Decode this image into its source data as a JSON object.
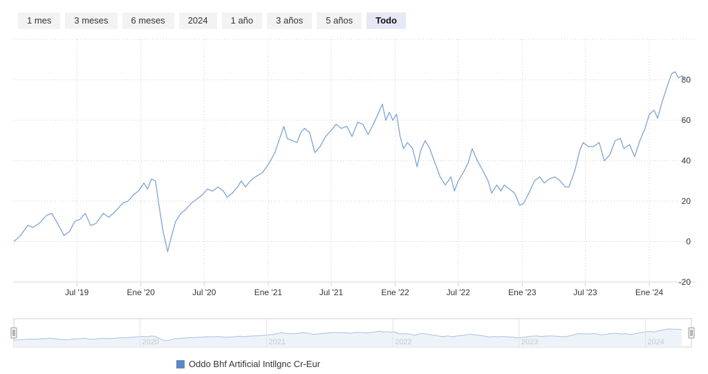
{
  "range_selector": {
    "buttons": [
      "1 mes",
      "3 meses",
      "6 meses",
      "2024",
      "1 año",
      "3 años",
      "5 años",
      "Todo"
    ],
    "selected": "Todo"
  },
  "colors": {
    "series": "#7ca2d3",
    "legend_swatch": "#5b87c4",
    "grid": "#c9c9c9",
    "navigator_line": "#a8c0e0",
    "navigator_fill": "#eef3fa",
    "axis_line": "#ccd6eb"
  },
  "chart_data": {
    "type": "line",
    "title": "",
    "xlabel": "",
    "ylabel": "",
    "x_tick_labels": [
      "Jul '19",
      "Ene '20",
      "Jul '20",
      "Ene '21",
      "Jul '21",
      "Ene '22",
      "Jul '22",
      "Ene '23",
      "Jul '23",
      "Ene '24"
    ],
    "y_tick_labels": [
      "-20",
      "0",
      "20",
      "40",
      "60",
      "80"
    ],
    "ylim": [
      -20,
      100
    ],
    "grid": true,
    "y_axis_side": "right",
    "legend_position": "bottom",
    "series": [
      {
        "name": "Oddo Bhf Artificial Intllgnc Cr-Eur",
        "points": [
          [
            "2019-01-01",
            0
          ],
          [
            "2019-01-20",
            3
          ],
          [
            "2019-02-10",
            8
          ],
          [
            "2019-02-25",
            7
          ],
          [
            "2019-03-15",
            9
          ],
          [
            "2019-04-05",
            13
          ],
          [
            "2019-04-20",
            14
          ],
          [
            "2019-05-10",
            8
          ],
          [
            "2019-05-25",
            3
          ],
          [
            "2019-06-10",
            5
          ],
          [
            "2019-06-25",
            10
          ],
          [
            "2019-07-10",
            11
          ],
          [
            "2019-07-25",
            14
          ],
          [
            "2019-08-10",
            8
          ],
          [
            "2019-08-25",
            9
          ],
          [
            "2019-09-15",
            14
          ],
          [
            "2019-10-01",
            12
          ],
          [
            "2019-10-20",
            15
          ],
          [
            "2019-11-10",
            19
          ],
          [
            "2019-11-25",
            20
          ],
          [
            "2019-12-10",
            23
          ],
          [
            "2019-12-25",
            25
          ],
          [
            "2020-01-10",
            29
          ],
          [
            "2020-01-20",
            26
          ],
          [
            "2020-02-01",
            31
          ],
          [
            "2020-02-12",
            30
          ],
          [
            "2020-02-22",
            18
          ],
          [
            "2020-03-05",
            5
          ],
          [
            "2020-03-18",
            -5
          ],
          [
            "2020-03-28",
            2
          ],
          [
            "2020-04-10",
            10
          ],
          [
            "2020-04-25",
            14
          ],
          [
            "2020-05-10",
            16
          ],
          [
            "2020-05-25",
            19
          ],
          [
            "2020-06-10",
            21
          ],
          [
            "2020-06-25",
            23
          ],
          [
            "2020-07-10",
            26
          ],
          [
            "2020-07-25",
            25
          ],
          [
            "2020-08-10",
            27
          ],
          [
            "2020-08-25",
            25
          ],
          [
            "2020-09-05",
            22
          ],
          [
            "2020-09-20",
            24
          ],
          [
            "2020-10-05",
            27
          ],
          [
            "2020-10-15",
            30
          ],
          [
            "2020-10-28",
            27
          ],
          [
            "2020-11-10",
            30
          ],
          [
            "2020-11-25",
            32
          ],
          [
            "2020-12-15",
            34
          ],
          [
            "2021-01-01",
            38
          ],
          [
            "2021-01-20",
            44
          ],
          [
            "2021-02-05",
            52
          ],
          [
            "2021-02-15",
            57
          ],
          [
            "2021-02-25",
            51
          ],
          [
            "2021-03-10",
            50
          ],
          [
            "2021-03-25",
            49
          ],
          [
            "2021-04-05",
            54
          ],
          [
            "2021-04-15",
            56
          ],
          [
            "2021-04-30",
            54
          ],
          [
            "2021-05-15",
            44
          ],
          [
            "2021-05-30",
            47
          ],
          [
            "2021-06-15",
            52
          ],
          [
            "2021-07-01",
            55
          ],
          [
            "2021-07-15",
            58
          ],
          [
            "2021-07-30",
            56
          ],
          [
            "2021-08-15",
            57
          ],
          [
            "2021-08-30",
            52
          ],
          [
            "2021-09-15",
            59
          ],
          [
            "2021-09-30",
            58
          ],
          [
            "2021-10-15",
            53
          ],
          [
            "2021-10-30",
            58
          ],
          [
            "2021-11-15",
            64
          ],
          [
            "2021-11-25",
            68
          ],
          [
            "2021-12-05",
            60
          ],
          [
            "2021-12-15",
            64
          ],
          [
            "2021-12-25",
            60
          ],
          [
            "2022-01-05",
            63
          ],
          [
            "2022-01-15",
            52
          ],
          [
            "2022-01-25",
            46
          ],
          [
            "2022-02-05",
            49
          ],
          [
            "2022-02-20",
            46
          ],
          [
            "2022-03-05",
            37
          ],
          [
            "2022-03-15",
            45
          ],
          [
            "2022-03-28",
            50
          ],
          [
            "2022-04-10",
            46
          ],
          [
            "2022-04-25",
            39
          ],
          [
            "2022-05-10",
            32
          ],
          [
            "2022-05-25",
            28
          ],
          [
            "2022-06-10",
            32
          ],
          [
            "2022-06-20",
            25
          ],
          [
            "2022-07-01",
            30
          ],
          [
            "2022-07-15",
            34
          ],
          [
            "2022-07-30",
            39
          ],
          [
            "2022-08-10",
            46
          ],
          [
            "2022-08-25",
            40
          ],
          [
            "2022-09-10",
            35
          ],
          [
            "2022-09-25",
            30
          ],
          [
            "2022-10-05",
            24
          ],
          [
            "2022-10-20",
            28
          ],
          [
            "2022-11-01",
            25
          ],
          [
            "2022-11-10",
            28
          ],
          [
            "2022-11-25",
            26
          ],
          [
            "2022-12-10",
            24
          ],
          [
            "2022-12-25",
            18
          ],
          [
            "2023-01-05",
            19
          ],
          [
            "2023-01-20",
            24
          ],
          [
            "2023-02-05",
            30
          ],
          [
            "2023-02-20",
            32
          ],
          [
            "2023-03-05",
            29
          ],
          [
            "2023-03-20",
            31
          ],
          [
            "2023-04-05",
            32
          ],
          [
            "2023-04-20",
            30
          ],
          [
            "2023-05-05",
            27
          ],
          [
            "2023-05-15",
            27
          ],
          [
            "2023-06-01",
            35
          ],
          [
            "2023-06-15",
            45
          ],
          [
            "2023-06-25",
            49
          ],
          [
            "2023-07-10",
            47
          ],
          [
            "2023-07-25",
            47
          ],
          [
            "2023-08-10",
            49
          ],
          [
            "2023-08-25",
            40
          ],
          [
            "2023-09-10",
            43
          ],
          [
            "2023-09-25",
            50
          ],
          [
            "2023-10-10",
            51
          ],
          [
            "2023-10-20",
            46
          ],
          [
            "2023-11-05",
            48
          ],
          [
            "2023-11-20",
            42
          ],
          [
            "2023-12-05",
            50
          ],
          [
            "2023-12-20",
            56
          ],
          [
            "2024-01-01",
            63
          ],
          [
            "2024-01-15",
            65
          ],
          [
            "2024-01-25",
            61
          ],
          [
            "2024-02-05",
            68
          ],
          [
            "2024-02-20",
            76
          ],
          [
            "2024-03-05",
            83
          ],
          [
            "2024-03-15",
            84
          ],
          [
            "2024-03-25",
            81
          ],
          [
            "2024-04-05",
            82
          ],
          [
            "2024-04-15",
            79
          ]
        ]
      }
    ]
  },
  "navigator": {
    "year_labels": [
      "2020",
      "2021",
      "2022",
      "2023",
      "2024"
    ]
  }
}
